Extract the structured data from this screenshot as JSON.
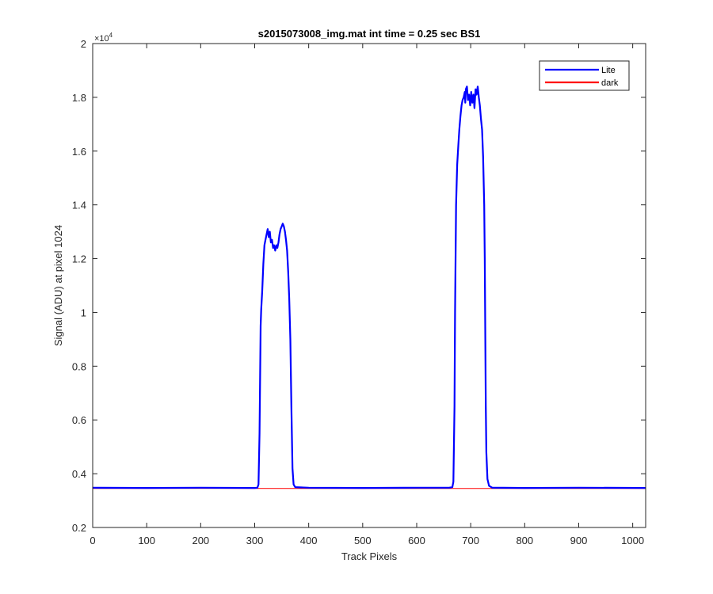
{
  "chart_data": {
    "type": "line",
    "title": "s2015073008_img.mat int time = 0.25 sec   BS1",
    "xlabel": "Track Pixels",
    "ylabel": "Signal (ADU) at pixel 1024",
    "xlim": [
      0,
      1024
    ],
    "ylim": [
      2000,
      20000
    ],
    "y_exponent_label": "×10",
    "y_exponent_power": "4",
    "x_ticks": [
      0,
      100,
      200,
      300,
      400,
      500,
      600,
      700,
      800,
      900,
      1000
    ],
    "x_tick_labels": [
      "0",
      "100",
      "200",
      "300",
      "400",
      "500",
      "600",
      "700",
      "800",
      "900",
      "1000"
    ],
    "y_ticks": [
      2000,
      4000,
      6000,
      8000,
      10000,
      12000,
      14000,
      16000,
      18000,
      20000
    ],
    "y_tick_labels": [
      "0.2",
      "0.4",
      "0.6",
      "0.8",
      "1",
      "1.2",
      "1.4",
      "1.6",
      "1.8",
      "2"
    ],
    "grid": false,
    "legend_position": "top-right",
    "series": [
      {
        "name": "Lite",
        "color": "#0000ff",
        "points": [
          [
            0,
            3480
          ],
          [
            100,
            3470
          ],
          [
            200,
            3480
          ],
          [
            300,
            3470
          ],
          [
            305,
            3480
          ],
          [
            307,
            3600
          ],
          [
            309,
            5500
          ],
          [
            311,
            9500
          ],
          [
            312,
            10100
          ],
          [
            314,
            10800
          ],
          [
            316,
            11800
          ],
          [
            318,
            12500
          ],
          [
            320,
            12700
          ],
          [
            322,
            12900
          ],
          [
            324,
            13100
          ],
          [
            326,
            12800
          ],
          [
            328,
            13000
          ],
          [
            330,
            12600
          ],
          [
            332,
            12700
          ],
          [
            334,
            12400
          ],
          [
            336,
            12500
          ],
          [
            338,
            12300
          ],
          [
            340,
            12500
          ],
          [
            342,
            12400
          ],
          [
            344,
            12600
          ],
          [
            346,
            12900
          ],
          [
            348,
            13100
          ],
          [
            350,
            13200
          ],
          [
            352,
            13300
          ],
          [
            354,
            13200
          ],
          [
            356,
            13000
          ],
          [
            358,
            12700
          ],
          [
            360,
            12300
          ],
          [
            362,
            11500
          ],
          [
            364,
            10500
          ],
          [
            366,
            9000
          ],
          [
            368,
            6500
          ],
          [
            370,
            4200
          ],
          [
            372,
            3600
          ],
          [
            375,
            3500
          ],
          [
            400,
            3480
          ],
          [
            500,
            3470
          ],
          [
            600,
            3480
          ],
          [
            660,
            3480
          ],
          [
            666,
            3500
          ],
          [
            668,
            3700
          ],
          [
            670,
            6500
          ],
          [
            671,
            10000
          ],
          [
            673,
            14000
          ],
          [
            675,
            15500
          ],
          [
            677,
            16200
          ],
          [
            679,
            16800
          ],
          [
            681,
            17300
          ],
          [
            683,
            17700
          ],
          [
            685,
            17900
          ],
          [
            687,
            18000
          ],
          [
            689,
            18200
          ],
          [
            690,
            17800
          ],
          [
            691,
            18300
          ],
          [
            693,
            18400
          ],
          [
            695,
            17900
          ],
          [
            697,
            18100
          ],
          [
            699,
            17700
          ],
          [
            701,
            18200
          ],
          [
            703,
            17800
          ],
          [
            705,
            18100
          ],
          [
            707,
            17600
          ],
          [
            709,
            18300
          ],
          [
            711,
            18100
          ],
          [
            713,
            18400
          ],
          [
            715,
            18000
          ],
          [
            717,
            17700
          ],
          [
            719,
            17200
          ],
          [
            721,
            16800
          ],
          [
            723,
            15800
          ],
          [
            725,
            14000
          ],
          [
            726,
            12000
          ],
          [
            727,
            9000
          ],
          [
            728,
            6500
          ],
          [
            729,
            4800
          ],
          [
            731,
            3800
          ],
          [
            734,
            3550
          ],
          [
            740,
            3480
          ],
          [
            800,
            3470
          ],
          [
            900,
            3480
          ],
          [
            1024,
            3470
          ]
        ]
      },
      {
        "name": "dark",
        "color": "#ff0000",
        "points": [
          [
            0,
            3450
          ],
          [
            200,
            3455
          ],
          [
            400,
            3448
          ],
          [
            600,
            3452
          ],
          [
            800,
            3450
          ],
          [
            1024,
            3452
          ]
        ]
      }
    ]
  }
}
